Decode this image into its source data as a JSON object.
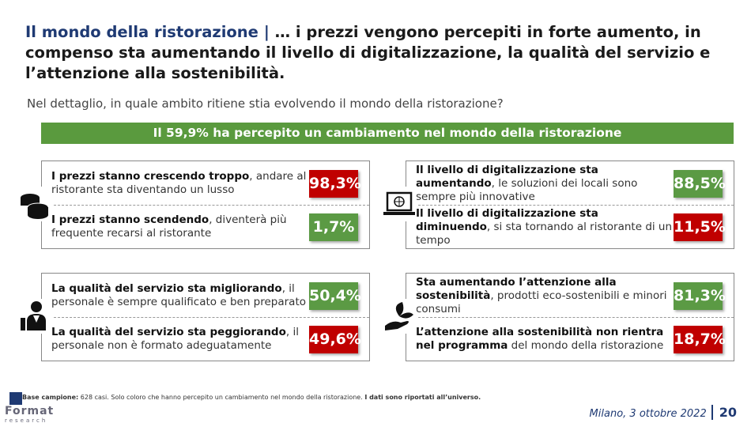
{
  "title": {
    "part1": "Il mondo della ristorazione | ",
    "part2": "… i prezzi vengono percepiti in forte aumento, in compenso sta aumentando il livello di digitalizzazione, la qualità del servizio e l’attenzione alla sostenibilità."
  },
  "question": "Nel dettaglio, in quale ambito ritiene stia evolvendo il mondo della ristorazione?",
  "banner": "Il 59,9% ha percepito un cambiamento nel mondo della ristorazione",
  "boxes": [
    {
      "icon": "coins-icon",
      "rows": [
        {
          "bold": "I prezzi stanno crescendo troppo",
          "rest": ", andare al ristorante sta diventando un lusso",
          "value": "98,3%",
          "color": "#c00000"
        },
        {
          "bold": "I prezzi stanno scendendo",
          "rest": ", diventerà più frequente recarsi al ristorante",
          "value": "1,7%",
          "color": "#5b9a44"
        }
      ]
    },
    {
      "icon": "laptop-globe-icon",
      "rows": [
        {
          "bold": "Il livello di digitalizzazione sta aumentando",
          "rest": ", le soluzioni dei locali sono sempre più innovative",
          "value": "88,5%",
          "color": "#5b9a44"
        },
        {
          "bold": "Il livello di digitalizzazione sta diminuendo",
          "rest": ", si sta tornando al ristorante di un tempo",
          "value": "11,5%",
          "color": "#c00000"
        }
      ]
    },
    {
      "icon": "waiter-icon",
      "rows": [
        {
          "bold": "La qualità del servizio sta migliorando",
          "rest": ", il personale è sempre qualificato e ben preparato",
          "value": "50,4%",
          "color": "#5b9a44"
        },
        {
          "bold": "La qualità del servizio sta peggiorando",
          "rest": ", il personale non è formato adeguatamente",
          "value": "49,6%",
          "color": "#c00000"
        }
      ]
    },
    {
      "icon": "plant-hand-icon",
      "rows": [
        {
          "bold": "Sta aumentando l’attenzione alla sostenibilità",
          "rest": ", prodotti eco-sostenibili e minori consumi",
          "value": "81,3%",
          "color": "#5b9a44"
        },
        {
          "bold": "L’attenzione alla sostenibilità non rientra nel programma",
          "rest": " del mondo della ristorazione",
          "value": "18,7%",
          "color": "#c00000"
        }
      ]
    }
  ],
  "footer": {
    "label": "Base campione:",
    "text": " 628 casi. Solo coloro che hanno percepito un cambiamento nel mondo della ristorazione. ",
    "bold_end": "I dati sono riportati all’universo.",
    "logo_main": "Format",
    "logo_sub": "research",
    "date": "Milano, 3 ottobre 2022",
    "page": "20"
  }
}
